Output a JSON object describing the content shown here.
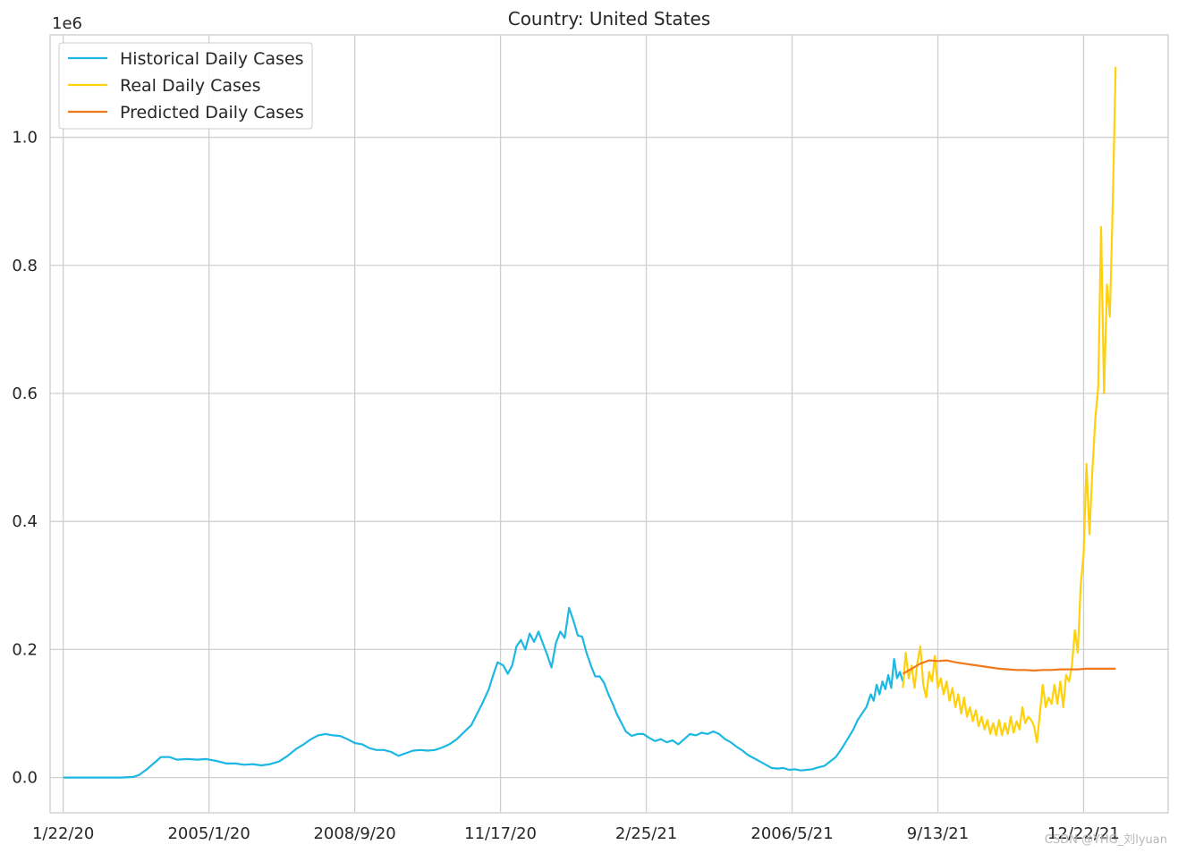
{
  "chart_data": {
    "type": "line",
    "title": "Country: United States",
    "offset_label": "1e6",
    "xlabel": "",
    "ylabel": "",
    "grid": true,
    "legend_position": "top-left",
    "x_tick_labels": [
      "1/22/20",
      "2005/1/20",
      "2008/9/20",
      "11/17/20",
      "2/25/21",
      "2006/5/21",
      "9/13/21",
      "12/22/21"
    ],
    "y_tick_labels": [
      "0.0",
      "0.2",
      "0.4",
      "0.6",
      "0.8",
      "1.0"
    ],
    "y_ticks": [
      0,
      0.2,
      0.4,
      0.6,
      0.8,
      1.0
    ],
    "xlim": [
      -9,
      758
    ],
    "ylim": [
      -0.055,
      1.16
    ],
    "series": [
      {
        "name": "Historical Daily Cases",
        "color": "#1cb8e3",
        "points": [
          [
            0,
            0.0
          ],
          [
            25,
            0.0
          ],
          [
            40,
            0.0
          ],
          [
            48,
            0.001
          ],
          [
            52,
            0.004
          ],
          [
            58,
            0.014
          ],
          [
            64,
            0.026
          ],
          [
            67,
            0.032
          ],
          [
            73,
            0.032
          ],
          [
            78,
            0.028
          ],
          [
            85,
            0.029
          ],
          [
            92,
            0.028
          ],
          [
            98,
            0.029
          ],
          [
            105,
            0.026
          ],
          [
            112,
            0.022
          ],
          [
            118,
            0.022
          ],
          [
            124,
            0.02
          ],
          [
            130,
            0.021
          ],
          [
            136,
            0.019
          ],
          [
            142,
            0.021
          ],
          [
            148,
            0.025
          ],
          [
            154,
            0.034
          ],
          [
            160,
            0.045
          ],
          [
            165,
            0.052
          ],
          [
            170,
            0.06
          ],
          [
            175,
            0.066
          ],
          [
            180,
            0.068
          ],
          [
            185,
            0.066
          ],
          [
            190,
            0.065
          ],
          [
            195,
            0.06
          ],
          [
            200,
            0.054
          ],
          [
            205,
            0.052
          ],
          [
            210,
            0.046
          ],
          [
            215,
            0.043
          ],
          [
            220,
            0.043
          ],
          [
            225,
            0.04
          ],
          [
            230,
            0.034
          ],
          [
            235,
            0.038
          ],
          [
            240,
            0.042
          ],
          [
            245,
            0.043
          ],
          [
            250,
            0.042
          ],
          [
            255,
            0.043
          ],
          [
            260,
            0.047
          ],
          [
            265,
            0.052
          ],
          [
            270,
            0.06
          ],
          [
            275,
            0.071
          ],
          [
            280,
            0.082
          ],
          [
            284,
            0.1
          ],
          [
            288,
            0.118
          ],
          [
            292,
            0.138
          ],
          [
            295,
            0.16
          ],
          [
            298,
            0.18
          ],
          [
            302,
            0.175
          ],
          [
            305,
            0.162
          ],
          [
            308,
            0.175
          ],
          [
            311,
            0.205
          ],
          [
            314,
            0.215
          ],
          [
            317,
            0.2
          ],
          [
            320,
            0.225
          ],
          [
            323,
            0.212
          ],
          [
            326,
            0.228
          ],
          [
            329,
            0.21
          ],
          [
            332,
            0.192
          ],
          [
            335,
            0.172
          ],
          [
            338,
            0.21
          ],
          [
            341,
            0.228
          ],
          [
            344,
            0.218
          ],
          [
            347,
            0.265
          ],
          [
            350,
            0.245
          ],
          [
            353,
            0.222
          ],
          [
            356,
            0.22
          ],
          [
            359,
            0.195
          ],
          [
            362,
            0.175
          ],
          [
            365,
            0.158
          ],
          [
            368,
            0.158
          ],
          [
            371,
            0.148
          ],
          [
            374,
            0.13
          ],
          [
            377,
            0.115
          ],
          [
            380,
            0.098
          ],
          [
            383,
            0.085
          ],
          [
            386,
            0.072
          ],
          [
            390,
            0.065
          ],
          [
            394,
            0.068
          ],
          [
            398,
            0.068
          ],
          [
            402,
            0.062
          ],
          [
            406,
            0.057
          ],
          [
            410,
            0.06
          ],
          [
            414,
            0.055
          ],
          [
            418,
            0.058
          ],
          [
            422,
            0.052
          ],
          [
            426,
            0.06
          ],
          [
            430,
            0.068
          ],
          [
            434,
            0.066
          ],
          [
            438,
            0.07
          ],
          [
            442,
            0.068
          ],
          [
            446,
            0.072
          ],
          [
            450,
            0.068
          ],
          [
            454,
            0.06
          ],
          [
            458,
            0.055
          ],
          [
            462,
            0.048
          ],
          [
            466,
            0.042
          ],
          [
            470,
            0.035
          ],
          [
            474,
            0.03
          ],
          [
            478,
            0.025
          ],
          [
            482,
            0.02
          ],
          [
            486,
            0.015
          ],
          [
            490,
            0.014
          ],
          [
            494,
            0.015
          ],
          [
            498,
            0.012
          ],
          [
            502,
            0.013
          ],
          [
            506,
            0.011
          ],
          [
            510,
            0.012
          ],
          [
            514,
            0.013
          ],
          [
            518,
            0.016
          ],
          [
            522,
            0.018
          ],
          [
            526,
            0.025
          ],
          [
            530,
            0.032
          ],
          [
            534,
            0.045
          ],
          [
            538,
            0.06
          ],
          [
            542,
            0.075
          ],
          [
            545,
            0.09
          ],
          [
            548,
            0.1
          ],
          [
            551,
            0.11
          ],
          [
            554,
            0.13
          ],
          [
            556,
            0.12
          ],
          [
            558,
            0.145
          ],
          [
            560,
            0.13
          ],
          [
            562,
            0.15
          ],
          [
            564,
            0.138
          ],
          [
            566,
            0.16
          ],
          [
            568,
            0.14
          ],
          [
            570,
            0.185
          ],
          [
            572,
            0.155
          ],
          [
            574,
            0.165
          ],
          [
            576,
            0.15
          ]
        ]
      },
      {
        "name": "Real Daily Cases",
        "color": "#ffd10a",
        "points": [
          [
            576,
            0.14
          ],
          [
            578,
            0.195
          ],
          [
            580,
            0.155
          ],
          [
            582,
            0.175
          ],
          [
            584,
            0.14
          ],
          [
            586,
            0.18
          ],
          [
            588,
            0.205
          ],
          [
            590,
            0.145
          ],
          [
            592,
            0.125
          ],
          [
            594,
            0.165
          ],
          [
            596,
            0.15
          ],
          [
            598,
            0.19
          ],
          [
            600,
            0.14
          ],
          [
            602,
            0.155
          ],
          [
            604,
            0.13
          ],
          [
            606,
            0.15
          ],
          [
            608,
            0.12
          ],
          [
            610,
            0.14
          ],
          [
            612,
            0.11
          ],
          [
            614,
            0.13
          ],
          [
            616,
            0.1
          ],
          [
            618,
            0.125
          ],
          [
            620,
            0.095
          ],
          [
            622,
            0.11
          ],
          [
            624,
            0.088
          ],
          [
            626,
            0.105
          ],
          [
            628,
            0.08
          ],
          [
            630,
            0.095
          ],
          [
            632,
            0.075
          ],
          [
            634,
            0.09
          ],
          [
            636,
            0.068
          ],
          [
            638,
            0.085
          ],
          [
            640,
            0.066
          ],
          [
            642,
            0.09
          ],
          [
            644,
            0.066
          ],
          [
            646,
            0.085
          ],
          [
            648,
            0.068
          ],
          [
            650,
            0.095
          ],
          [
            652,
            0.07
          ],
          [
            654,
            0.088
          ],
          [
            656,
            0.075
          ],
          [
            658,
            0.11
          ],
          [
            660,
            0.085
          ],
          [
            662,
            0.095
          ],
          [
            664,
            0.09
          ],
          [
            666,
            0.08
          ],
          [
            668,
            0.055
          ],
          [
            670,
            0.1
          ],
          [
            672,
            0.145
          ],
          [
            674,
            0.11
          ],
          [
            676,
            0.125
          ],
          [
            678,
            0.115
          ],
          [
            680,
            0.145
          ],
          [
            682,
            0.115
          ],
          [
            684,
            0.15
          ],
          [
            686,
            0.11
          ],
          [
            688,
            0.16
          ],
          [
            690,
            0.15
          ],
          [
            692,
            0.175
          ],
          [
            694,
            0.23
          ],
          [
            696,
            0.195
          ],
          [
            698,
            0.3
          ],
          [
            700,
            0.35
          ],
          [
            702,
            0.49
          ],
          [
            704,
            0.38
          ],
          [
            706,
            0.48
          ],
          [
            708,
            0.56
          ],
          [
            710,
            0.61
          ],
          [
            712,
            0.86
          ],
          [
            714,
            0.6
          ],
          [
            716,
            0.77
          ],
          [
            718,
            0.72
          ],
          [
            720,
            0.9
          ],
          [
            722,
            1.11
          ]
        ]
      },
      {
        "name": "Predicted Daily Cases",
        "color": "#f0791e",
        "points": [
          [
            576,
            0.162
          ],
          [
            582,
            0.17
          ],
          [
            588,
            0.178
          ],
          [
            594,
            0.183
          ],
          [
            600,
            0.182
          ],
          [
            606,
            0.183
          ],
          [
            612,
            0.18
          ],
          [
            618,
            0.178
          ],
          [
            624,
            0.176
          ],
          [
            630,
            0.174
          ],
          [
            636,
            0.172
          ],
          [
            642,
            0.17
          ],
          [
            648,
            0.169
          ],
          [
            654,
            0.168
          ],
          [
            660,
            0.168
          ],
          [
            666,
            0.167
          ],
          [
            672,
            0.168
          ],
          [
            678,
            0.168
          ],
          [
            684,
            0.169
          ],
          [
            690,
            0.169
          ],
          [
            696,
            0.169
          ],
          [
            702,
            0.17
          ],
          [
            708,
            0.17
          ],
          [
            714,
            0.17
          ],
          [
            722,
            0.17
          ]
        ]
      }
    ]
  },
  "watermark": "CSDN @YHG_刘lyuan"
}
